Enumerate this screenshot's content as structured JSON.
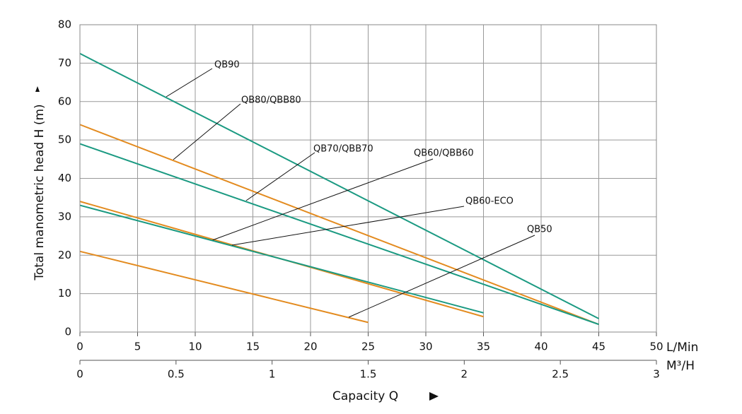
{
  "chart_data": {
    "type": "line",
    "y_label": "Total manometric head H (m)",
    "x_label": "Capacity  Q",
    "x_unit": "L/Min",
    "x2_unit": "M³/H",
    "xlim": [
      0,
      50
    ],
    "xticks": [
      0,
      5,
      10,
      15,
      20,
      25,
      30,
      35,
      40,
      45,
      50
    ],
    "x2lim": [
      0,
      3
    ],
    "x2ticks": [
      0,
      0.5,
      1,
      1.5,
      2,
      2.5,
      3
    ],
    "ylim": [
      0,
      80
    ],
    "yticks": [
      0,
      10,
      20,
      30,
      40,
      50,
      60,
      70,
      80
    ],
    "grid": true,
    "series": [
      {
        "name": "QB90",
        "color": "#1b9a82",
        "x": [
          0,
          45
        ],
        "values": [
          72.5,
          3.5
        ]
      },
      {
        "name": "QB80/QBB80",
        "color": "#e38b1f",
        "x": [
          0,
          45
        ],
        "values": [
          54,
          2
        ]
      },
      {
        "name": "QB70/QBB70",
        "color": "#1b9a82",
        "x": [
          0,
          45
        ],
        "values": [
          49,
          2
        ]
      },
      {
        "name": "QB60/QBB60",
        "color": "#e38b1f",
        "x": [
          0,
          35
        ],
        "values": [
          34,
          4
        ]
      },
      {
        "name": "QB60-ECO",
        "color": "#1b9a82",
        "x": [
          0,
          35
        ],
        "values": [
          33,
          5
        ]
      },
      {
        "name": "QB50",
        "color": "#e38b1f",
        "x": [
          0,
          25
        ],
        "values": [
          21,
          2.5
        ]
      }
    ]
  }
}
